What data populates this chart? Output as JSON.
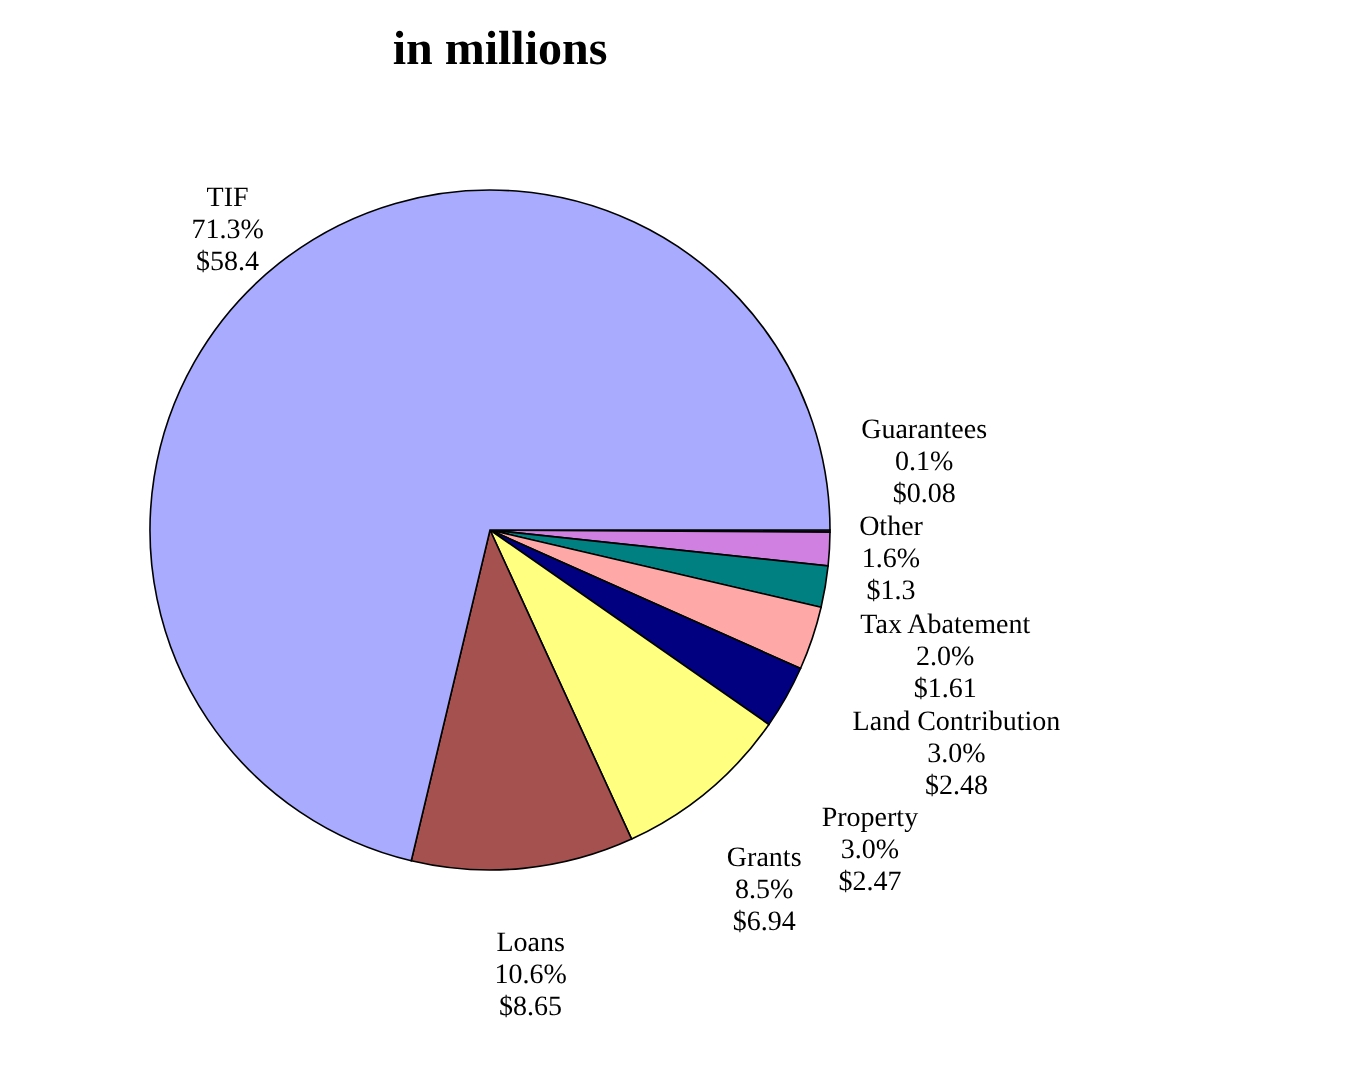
{
  "chart_data": {
    "type": "pie",
    "title": "in millions",
    "categories": [
      "Guarantees",
      "Other",
      "Tax Abatement",
      "Land Contribution",
      "Property",
      "Grants",
      "Loans",
      "TIF"
    ],
    "values": [
      0.08,
      1.3,
      1.61,
      2.48,
      2.47,
      6.94,
      8.65,
      58.4
    ],
    "value_labels": [
      "0.1%\n$0.08",
      "1.6%\n$1.3",
      "2.0%\n$1.61",
      "3.0%\n$2.48",
      "3.0%\n$2.47",
      "8.5%\n$6.94",
      "10.6%\n$8.65",
      "71.3%\n$58.4"
    ],
    "colors": [
      "#c0c0c0",
      "#d080e0",
      "#008080",
      "#ffa8a8",
      "#000080",
      "#ffff80",
      "#a5514f",
      "#a9abfe"
    ]
  }
}
